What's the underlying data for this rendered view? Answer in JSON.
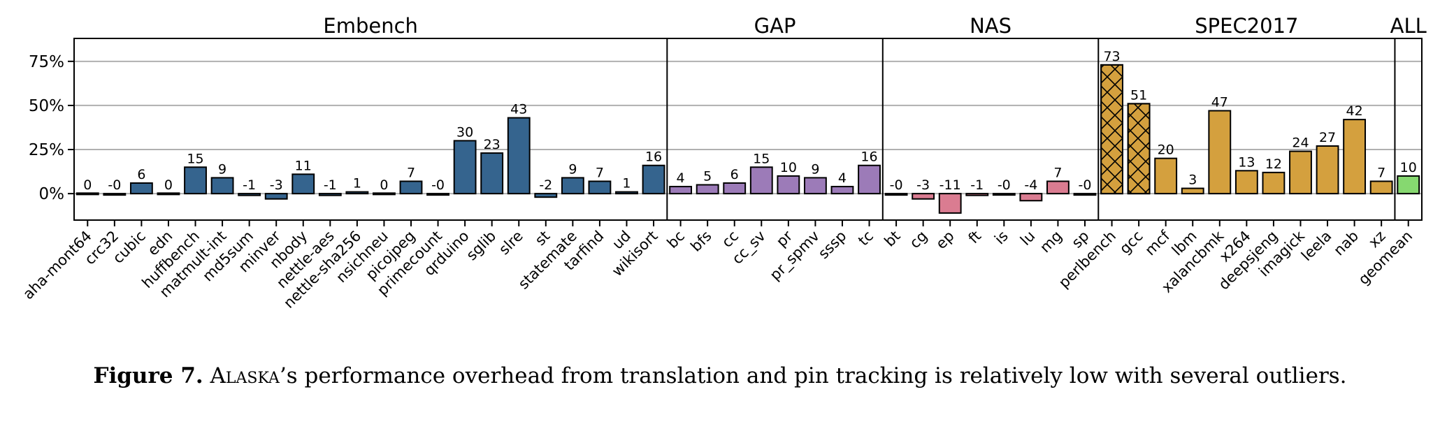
{
  "chart_data": {
    "type": "bar",
    "ylim": [
      -15,
      88
    ],
    "yticks": [
      0,
      25,
      50,
      75
    ],
    "ytick_labels": [
      "0%",
      "25%",
      "50%",
      "75%"
    ],
    "grid": true,
    "colors": {
      "Embench": "#35648e",
      "GAP": "#9c7bb8",
      "NAS": "#da7c91",
      "SPEC2017": "#d4a03e",
      "ALL": "#86d870"
    },
    "groups": [
      {
        "name": "Embench",
        "bars": [
          {
            "label": "aha-mont64",
            "value": 0.3,
            "text": "0"
          },
          {
            "label": "crc32",
            "value": -0.3,
            "text": "-0"
          },
          {
            "label": "cubic",
            "value": 6,
            "text": "6"
          },
          {
            "label": "edn",
            "value": 0.3,
            "text": "0"
          },
          {
            "label": "huffbench",
            "value": 15,
            "text": "15"
          },
          {
            "label": "matmult-int",
            "value": 9,
            "text": "9"
          },
          {
            "label": "md5sum",
            "value": -1,
            "text": "-1"
          },
          {
            "label": "minver",
            "value": -3,
            "text": "-3"
          },
          {
            "label": "nbody",
            "value": 11,
            "text": "11"
          },
          {
            "label": "nettle-aes",
            "value": -1,
            "text": "-1"
          },
          {
            "label": "nettle-sha256",
            "value": 1,
            "text": "1"
          },
          {
            "label": "nsichneu",
            "value": 0.3,
            "text": "0"
          },
          {
            "label": "picojpeg",
            "value": 7,
            "text": "7"
          },
          {
            "label": "primecount",
            "value": -0.3,
            "text": "-0"
          },
          {
            "label": "qrduino",
            "value": 30,
            "text": "30"
          },
          {
            "label": "sglib",
            "value": 23,
            "text": "23"
          },
          {
            "label": "slre",
            "value": 43,
            "text": "43"
          },
          {
            "label": "st",
            "value": -2,
            "text": "-2"
          },
          {
            "label": "statemate",
            "value": 9,
            "text": "9"
          },
          {
            "label": "tarfind",
            "value": 7,
            "text": "7"
          },
          {
            "label": "ud",
            "value": 1,
            "text": "1"
          },
          {
            "label": "wikisort",
            "value": 16,
            "text": "16"
          }
        ]
      },
      {
        "name": "GAP",
        "bars": [
          {
            "label": "bc",
            "value": 4,
            "text": "4"
          },
          {
            "label": "bfs",
            "value": 5,
            "text": "5"
          },
          {
            "label": "cc",
            "value": 6,
            "text": "6"
          },
          {
            "label": "cc_sv",
            "value": 15,
            "text": "15"
          },
          {
            "label": "pr",
            "value": 10,
            "text": "10"
          },
          {
            "label": "pr_spmv",
            "value": 9,
            "text": "9"
          },
          {
            "label": "sssp",
            "value": 4,
            "text": "4"
          },
          {
            "label": "tc",
            "value": 16,
            "text": "16"
          }
        ]
      },
      {
        "name": "NAS",
        "bars": [
          {
            "label": "bt",
            "value": -0.3,
            "text": "-0"
          },
          {
            "label": "cg",
            "value": -3,
            "text": "-3"
          },
          {
            "label": "ep",
            "value": -11,
            "text": "-11"
          },
          {
            "label": "ft",
            "value": -1,
            "text": "-1"
          },
          {
            "label": "is",
            "value": -0.3,
            "text": "-0"
          },
          {
            "label": "lu",
            "value": -4,
            "text": "-4"
          },
          {
            "label": "mg",
            "value": 7,
            "text": "7"
          },
          {
            "label": "sp",
            "value": -0.3,
            "text": "-0"
          }
        ]
      },
      {
        "name": "SPEC2017",
        "bars": [
          {
            "label": "perlbench",
            "value": 73,
            "text": "73",
            "hatched": true
          },
          {
            "label": "gcc",
            "value": 51,
            "text": "51",
            "hatched": true
          },
          {
            "label": "mcf",
            "value": 20,
            "text": "20"
          },
          {
            "label": "lbm",
            "value": 3,
            "text": "3"
          },
          {
            "label": "xalancbmk",
            "value": 47,
            "text": "47"
          },
          {
            "label": "x264",
            "value": 13,
            "text": "13"
          },
          {
            "label": "deepsjeng",
            "value": 12,
            "text": "12"
          },
          {
            "label": "imagick",
            "value": 24,
            "text": "24"
          },
          {
            "label": "leela",
            "value": 27,
            "text": "27"
          },
          {
            "label": "nab",
            "value": 42,
            "text": "42"
          },
          {
            "label": "xz",
            "value": 7,
            "text": "7"
          }
        ]
      },
      {
        "name": "ALL",
        "bars": [
          {
            "label": "geomean",
            "value": 10,
            "text": "10"
          }
        ]
      }
    ]
  },
  "caption": {
    "label": "Figure 7.",
    "name": "Alaska",
    "rest": "’s performance overhead from translation and pin tracking is relatively low with several outliers."
  }
}
